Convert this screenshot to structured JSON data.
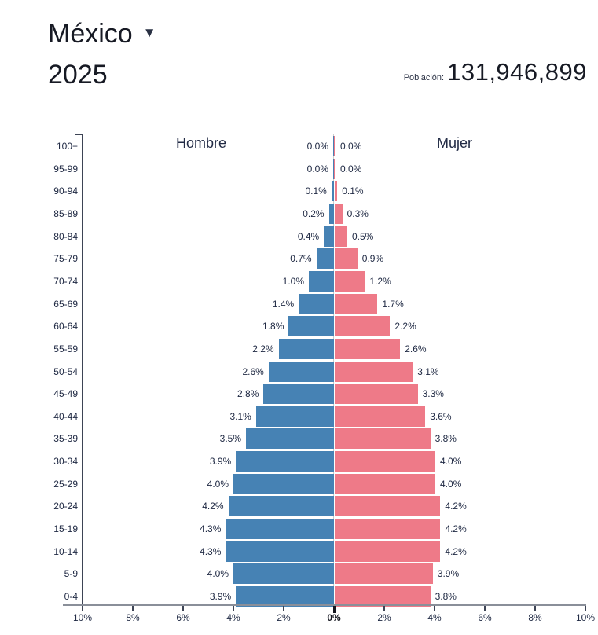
{
  "header": {
    "country": "México",
    "year": "2025",
    "population_label": "Población:",
    "population_value": "131,946,899",
    "dropdown_icon": "triangle-down"
  },
  "colors": {
    "male_bar": "#4682B4",
    "female_bar": "#EE7A88",
    "text": "#202a44",
    "axis": "#3d4455"
  },
  "chart_data": {
    "type": "bar",
    "subtype": "population-pyramid",
    "title": "México 2025 population pyramid",
    "left_series_label": "Hombre",
    "right_series_label": "Mujer",
    "unit": "% of total population",
    "xlim_percent": [
      10,
      10
    ],
    "grid": "off",
    "x_axis_tick_labels": [
      "10%",
      "8%",
      "6%",
      "4%",
      "2%",
      "0%",
      "2%",
      "4%",
      "6%",
      "8%",
      "10%"
    ],
    "categories": [
      "100+",
      "95-99",
      "90-94",
      "85-89",
      "80-84",
      "75-79",
      "70-74",
      "65-69",
      "60-64",
      "55-59",
      "50-54",
      "45-49",
      "40-44",
      "35-39",
      "30-34",
      "25-29",
      "20-24",
      "15-19",
      "10-14",
      "5-9",
      "0-4"
    ],
    "series": [
      {
        "name": "Hombre",
        "color": "#4682B4",
        "values": [
          0.0,
          0.0,
          0.1,
          0.2,
          0.4,
          0.7,
          1.0,
          1.4,
          1.8,
          2.2,
          2.6,
          2.8,
          3.1,
          3.5,
          3.9,
          4.0,
          4.2,
          4.3,
          4.3,
          4.0,
          3.9
        ]
      },
      {
        "name": "Mujer",
        "color": "#EE7A88",
        "values": [
          0.0,
          0.0,
          0.1,
          0.3,
          0.5,
          0.9,
          1.2,
          1.7,
          2.2,
          2.6,
          3.1,
          3.3,
          3.6,
          3.8,
          4.0,
          4.0,
          4.2,
          4.2,
          4.2,
          3.9,
          3.8
        ]
      }
    ],
    "bar_labels": {
      "male": [
        "0.0%",
        "0.0%",
        "0.1%",
        "0.2%",
        "0.4%",
        "0.7%",
        "1.0%",
        "1.4%",
        "1.8%",
        "2.2%",
        "2.6%",
        "2.8%",
        "3.1%",
        "3.5%",
        "3.9%",
        "4.0%",
        "4.2%",
        "4.3%",
        "4.3%",
        "4.0%",
        "3.9%"
      ],
      "female": [
        "0.0%",
        "0.0%",
        "0.1%",
        "0.3%",
        "0.5%",
        "0.9%",
        "1.2%",
        "1.7%",
        "2.2%",
        "2.6%",
        "3.1%",
        "3.3%",
        "3.6%",
        "3.8%",
        "4.0%",
        "4.0%",
        "4.2%",
        "4.2%",
        "4.2%",
        "3.9%",
        "3.8%"
      ]
    }
  }
}
